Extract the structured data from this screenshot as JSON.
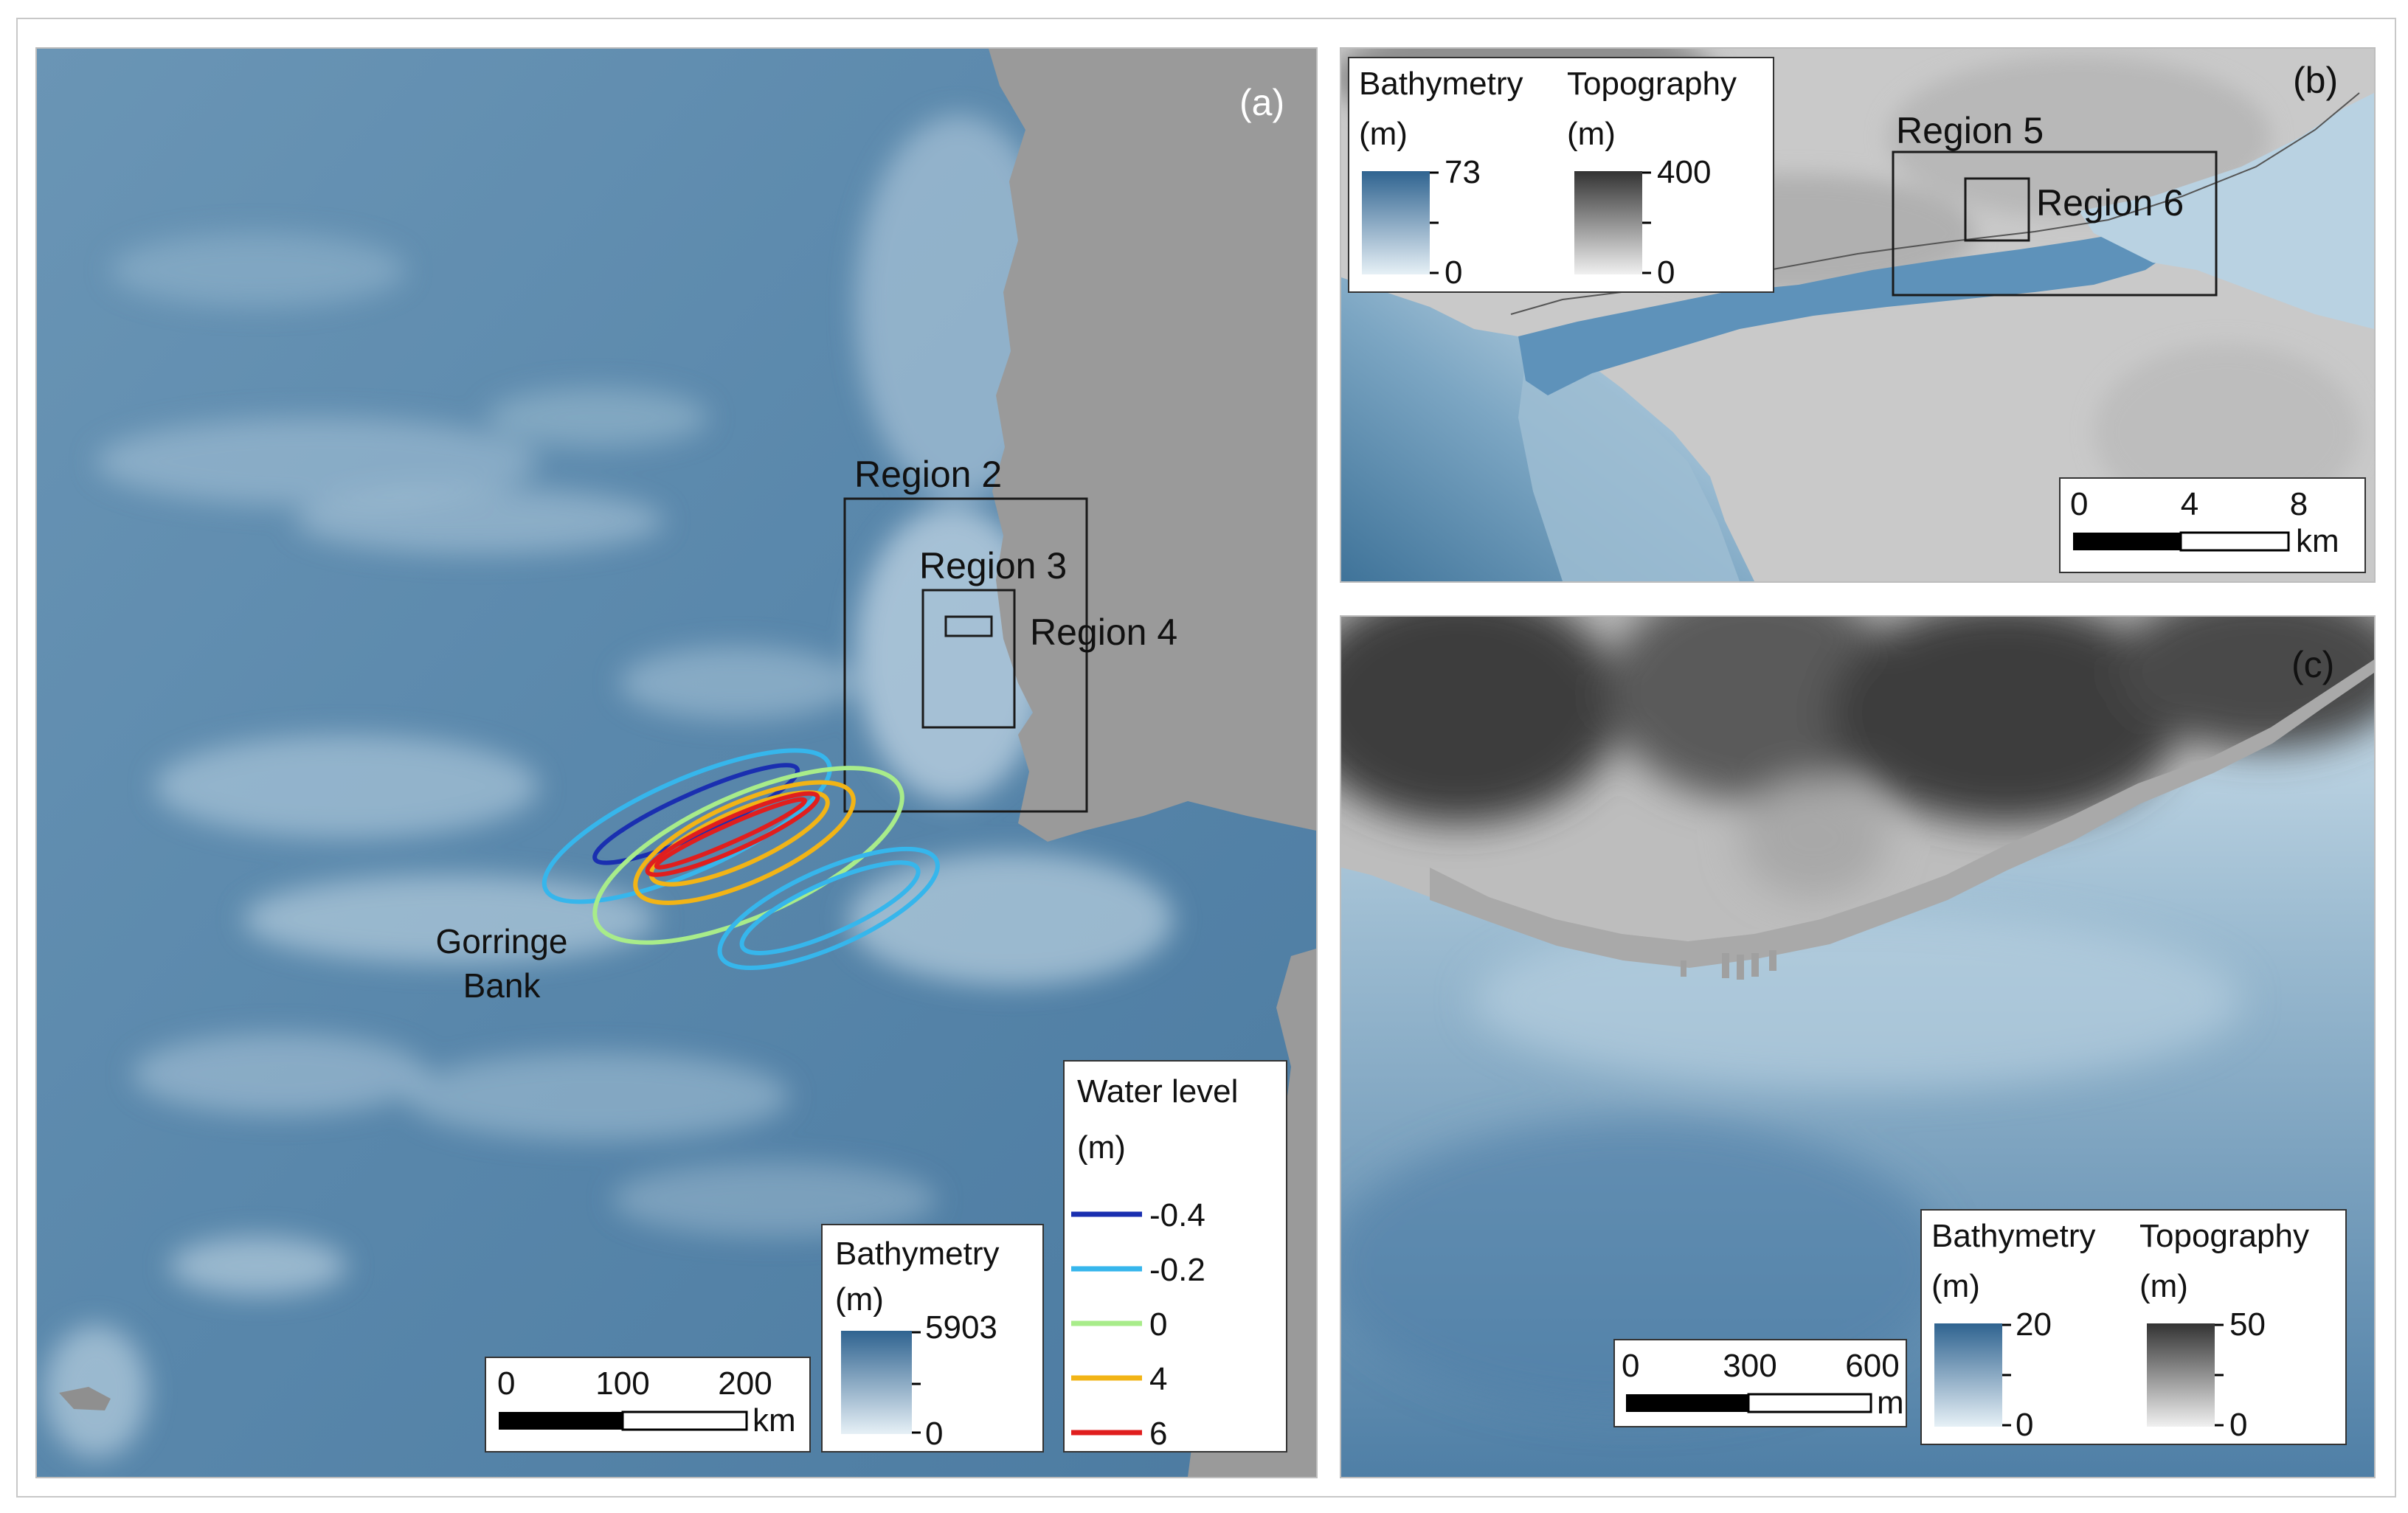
{
  "panels": {
    "a": {
      "label": "(a)",
      "regions": [
        "Region 2",
        "Region 3",
        "Region 4"
      ],
      "feature_label_line1": "Gorringe",
      "feature_label_line2": "Bank",
      "bathymetry_legend": {
        "title": "Bathymetry",
        "unit": "(m)",
        "max": "5903",
        "min": "0"
      },
      "water_level_legend": {
        "title": "Water level",
        "unit": "(m)",
        "entries": [
          {
            "value": "-0.4",
            "color": "#1a2fb0"
          },
          {
            "value": "-0.2",
            "color": "#36b6ec"
          },
          {
            "value": "0",
            "color": "#a8ec8a"
          },
          {
            "value": "4",
            "color": "#f2b416"
          },
          {
            "value": "6",
            "color": "#e01e1e"
          }
        ]
      },
      "scale_bar": {
        "ticks": [
          "0",
          "100",
          "200"
        ],
        "unit": "km"
      }
    },
    "b": {
      "label": "(b)",
      "regions": [
        "Region 5",
        "Region 6"
      ],
      "bathymetry_legend": {
        "title": "Bathymetry",
        "unit": "(m)",
        "max": "73",
        "min": "0"
      },
      "topography_legend": {
        "title": "Topography",
        "unit": "(m)",
        "max": "400",
        "min": "0"
      },
      "scale_bar": {
        "ticks": [
          "0",
          "4",
          "8"
        ],
        "unit": "km"
      }
    },
    "c": {
      "label": "(c)",
      "bathymetry_legend": {
        "title": "Bathymetry",
        "unit": "(m)",
        "max": "20",
        "min": "0"
      },
      "topography_legend": {
        "title": "Topography",
        "unit": "(m)",
        "max": "50",
        "min": "0"
      },
      "scale_bar": {
        "ticks": [
          "0",
          "300",
          "600"
        ],
        "unit": "m"
      }
    }
  },
  "colors": {
    "deep_water": "#4f7fa3",
    "shallow_water": "#dbe9f1",
    "land_gray": "#9a9a9a",
    "topography_high": "#3a3a3a",
    "topography_low": "#e2e2e2"
  }
}
